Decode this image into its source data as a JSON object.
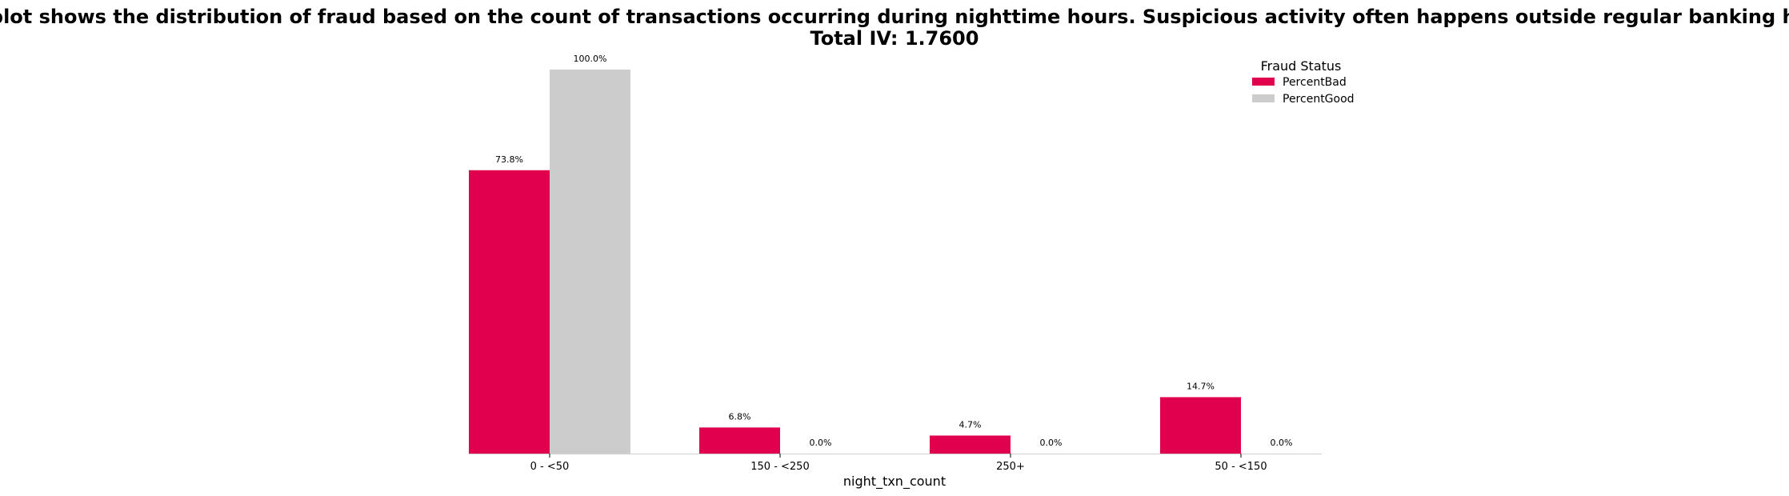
{
  "chart_data": {
    "type": "bar",
    "title": "This plot shows the distribution of fraud based on the count of transactions occurring during nighttime hours. Suspicious activity often happens outside regular banking hours.",
    "subtitle": "Total IV: 1.7600",
    "xlabel": "night_txn_count",
    "ylabel": "",
    "categories": [
      "0 - <50",
      "150 - <250",
      "250+",
      "50 - <150"
    ],
    "series": [
      {
        "name": "PercentBad",
        "color": "#e0004d",
        "values": [
          73.8,
          6.8,
          4.7,
          14.7
        ],
        "labels": [
          "73.8%",
          "6.8%",
          "4.7%",
          "14.7%"
        ]
      },
      {
        "name": "PercentGood",
        "color": "#cccccc",
        "values": [
          100.0,
          0.0,
          0.0,
          0.0
        ],
        "labels": [
          "100.0%",
          "0.0%",
          "0.0%",
          "0.0%"
        ]
      }
    ],
    "ylim": [
      0,
      100
    ],
    "grid": false,
    "legend": {
      "title": "Fraud Status",
      "placement": "top-right"
    }
  }
}
